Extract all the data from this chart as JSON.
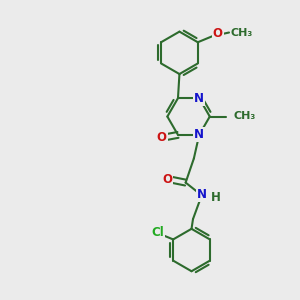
{
  "bg_color": "#ebebeb",
  "bond_color": "#2d6b2d",
  "bond_width": 1.5,
  "atom_colors": {
    "N": "#1414cc",
    "O": "#cc1414",
    "Cl": "#22aa22",
    "C": "#2d6b2d"
  },
  "font_size": 8.5,
  "fig_size": [
    3.0,
    3.0
  ],
  "dpi": 100,
  "xlim": [
    0,
    10
  ],
  "ylim": [
    0,
    10
  ]
}
